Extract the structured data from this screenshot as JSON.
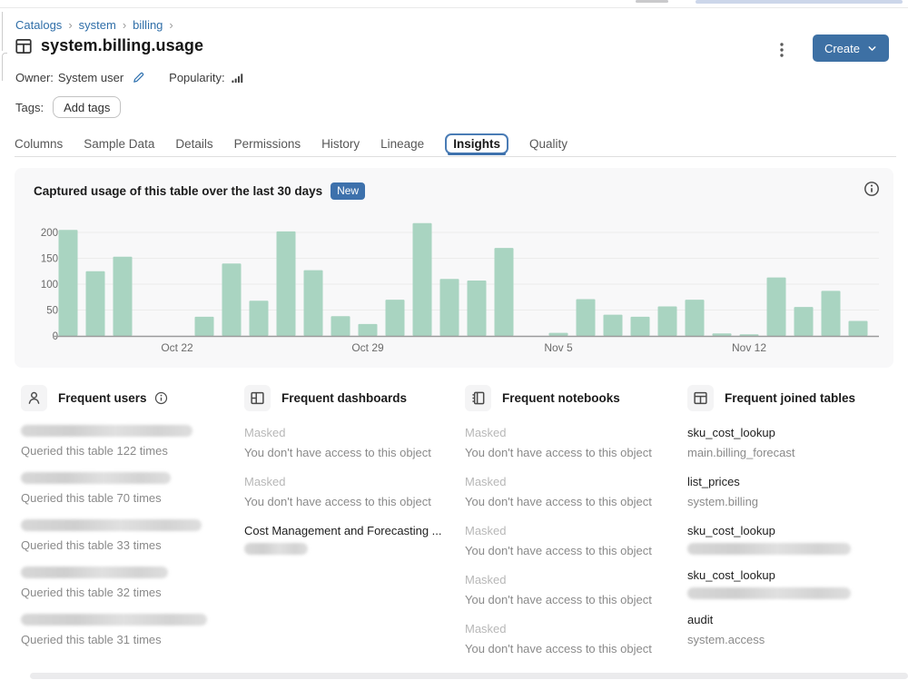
{
  "breadcrumb": {
    "items": [
      "Catalogs",
      "system",
      "billing"
    ],
    "separator": "›"
  },
  "header": {
    "title": "system.billing.usage",
    "create_label": "Create",
    "owner_label": "Owner:",
    "owner_value": "System user",
    "popularity_label": "Popularity:",
    "tags_label": "Tags:",
    "add_tags_label": "Add tags"
  },
  "tabs": {
    "items": [
      "Columns",
      "Sample Data",
      "Details",
      "Permissions",
      "History",
      "Lineage",
      "Insights",
      "Quality"
    ],
    "active": "Insights"
  },
  "chart_panel": {
    "title": "Captured usage of this table over the last 30 days",
    "badge": "New"
  },
  "chart_data": {
    "type": "bar",
    "title": "Captured usage of this table over the last 30 days",
    "xlabel": "",
    "ylabel": "",
    "x": [
      "Oct 18",
      "Oct 19",
      "Oct 20",
      "Oct 21",
      "Oct 22",
      "Oct 23",
      "Oct 24",
      "Oct 25",
      "Oct 26",
      "Oct 27",
      "Oct 28",
      "Oct 29",
      "Oct 30",
      "Oct 31",
      "Nov 1",
      "Nov 2",
      "Nov 3",
      "Nov 4",
      "Nov 5",
      "Nov 6",
      "Nov 7",
      "Nov 8",
      "Nov 9",
      "Nov 10",
      "Nov 11",
      "Nov 12",
      "Nov 13",
      "Nov 14",
      "Nov 15",
      "Nov 16"
    ],
    "values": [
      205,
      125,
      153,
      0,
      0,
      37,
      140,
      68,
      202,
      127,
      38,
      23,
      70,
      218,
      110,
      107,
      170,
      0,
      6,
      71,
      41,
      37,
      57,
      70,
      5,
      3,
      113,
      56,
      87,
      29
    ],
    "ylim": [
      0,
      200
    ],
    "ytick_values": [
      0,
      50,
      100,
      150,
      200
    ],
    "gridline_values": [
      50,
      100,
      150,
      200
    ],
    "xticks": [
      {
        "index": 4,
        "label": "Oct 22"
      },
      {
        "index": 11,
        "label": "Oct 29"
      },
      {
        "index": 18,
        "label": "Nov 5"
      },
      {
        "index": 25,
        "label": "Nov 12"
      }
    ],
    "bar_color": "#a9d4c1",
    "grid": "horizontal-only",
    "legend": "none"
  },
  "insights": {
    "columns": [
      {
        "id": "frequent-users",
        "icon": "user-icon",
        "label": "Frequent users",
        "has_info": true,
        "entries": [
          {
            "masked_title": true,
            "mask_width": 189,
            "subtitle": "Queried this table 122 times"
          },
          {
            "masked_title": true,
            "mask_width": 165,
            "subtitle": "Queried this table 70 times"
          },
          {
            "masked_title": true,
            "mask_width": 199,
            "subtitle": "Queried this table 33 times"
          },
          {
            "masked_title": true,
            "mask_width": 162,
            "subtitle": "Queried this table 32 times"
          },
          {
            "masked_title": true,
            "mask_width": 205,
            "subtitle": "Queried this table 31 times"
          }
        ]
      },
      {
        "id": "frequent-dashboards",
        "icon": "dashboard-icon",
        "label": "Frequent dashboards",
        "has_info": false,
        "entries": [
          {
            "title": "Masked",
            "muted": true,
            "subtitle": "You don't have access to this object"
          },
          {
            "title": "Masked",
            "muted": true,
            "subtitle": "You don't have access to this object"
          },
          {
            "title": "Cost Management and Forecasting ...",
            "masked_subtitle": true,
            "mask_width": 70
          }
        ]
      },
      {
        "id": "frequent-notebooks",
        "icon": "notebook-icon",
        "label": "Frequent notebooks",
        "has_info": false,
        "entries": [
          {
            "title": "Masked",
            "muted": true,
            "subtitle": "You don't have access to this object"
          },
          {
            "title": "Masked",
            "muted": true,
            "subtitle": "You don't have access to this object"
          },
          {
            "title": "Masked",
            "muted": true,
            "subtitle": "You don't have access to this object"
          },
          {
            "title": "Masked",
            "muted": true,
            "subtitle": "You don't have access to this object"
          },
          {
            "title": "Masked",
            "muted": true,
            "subtitle": "You don't have access to this object"
          }
        ]
      },
      {
        "id": "frequent-joined-tables",
        "icon": "table-icon",
        "label": "Frequent joined tables",
        "has_info": false,
        "entries": [
          {
            "title": "sku_cost_lookup",
            "subtitle": "main.billing_forecast"
          },
          {
            "title": "list_prices",
            "subtitle": "system.billing"
          },
          {
            "title": "sku_cost_lookup",
            "masked_subtitle": true,
            "mask_width": 180
          },
          {
            "title": "sku_cost_lookup",
            "masked_subtitle": true,
            "mask_width": 180
          },
          {
            "title": "audit",
            "subtitle": "system.access"
          }
        ]
      }
    ]
  }
}
